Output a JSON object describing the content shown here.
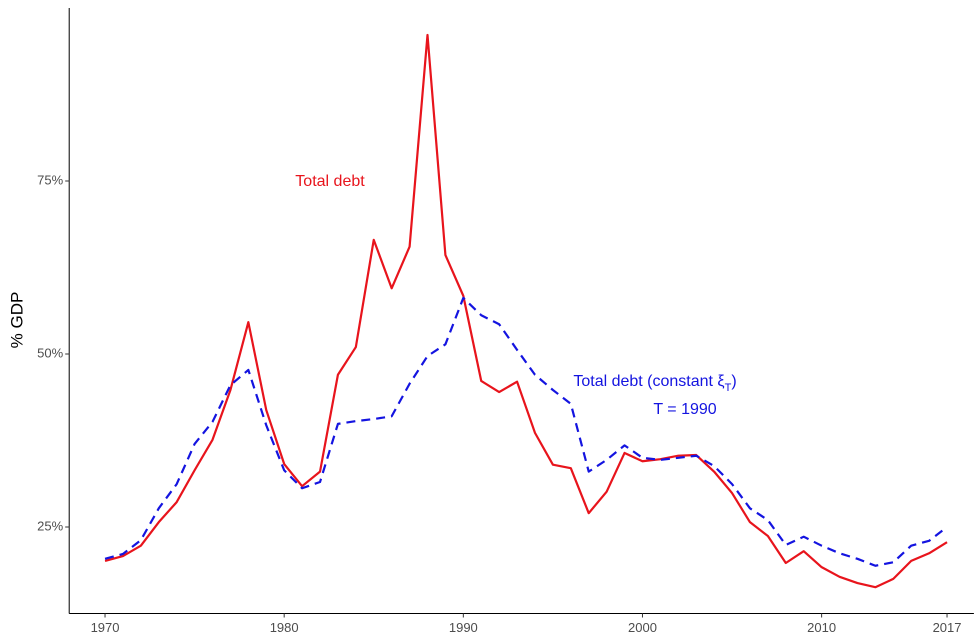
{
  "chart_data": {
    "type": "line",
    "ylabel": "% GDP",
    "x": [
      1970,
      1971,
      1972,
      1973,
      1974,
      1975,
      1976,
      1977,
      1978,
      1979,
      1980,
      1981,
      1982,
      1983,
      1984,
      1985,
      1986,
      1987,
      1988,
      1989,
      1990,
      1991,
      1992,
      1993,
      1994,
      1995,
      1996,
      1997,
      1998,
      1999,
      2000,
      2001,
      2002,
      2003,
      2004,
      2005,
      2006,
      2007,
      2008,
      2009,
      2010,
      2011,
      2012,
      2013,
      2014,
      2015,
      2016,
      2017
    ],
    "series": [
      {
        "name": "Total debt",
        "color": "#e8141c",
        "dash": false,
        "values": [
          20.1,
          20.8,
          22.3,
          25.7,
          28.6,
          33.2,
          37.6,
          44.8,
          54.6,
          41.9,
          34.1,
          30.9,
          33.0,
          47.0,
          51.0,
          66.5,
          59.5,
          65.5,
          96.1,
          64.3,
          58.4,
          46.1,
          44.5,
          46.0,
          38.6,
          34.0,
          33.5,
          27.0,
          30.1,
          35.7,
          34.5,
          34.8,
          35.3,
          35.4,
          33.0,
          29.9,
          25.7,
          23.7,
          19.8,
          21.5,
          19.2,
          17.8,
          16.9,
          16.3,
          17.5,
          20.1,
          21.2,
          22.8
        ]
      },
      {
        "name": "Total debt (constant ξT)",
        "color": "#1414e0",
        "dash": true,
        "values": [
          20.4,
          21.1,
          23.1,
          27.7,
          31.2,
          37.0,
          40.2,
          45.5,
          47.7,
          39.7,
          33.2,
          30.6,
          31.5,
          39.9,
          40.3,
          40.6,
          41.0,
          45.7,
          49.7,
          51.4,
          58.1,
          55.6,
          54.3,
          50.6,
          47.0,
          44.8,
          42.8,
          33.0,
          34.7,
          36.8,
          35.0,
          34.7,
          35.0,
          35.3,
          33.8,
          31.2,
          27.7,
          26.0,
          22.4,
          23.6,
          22.3,
          21.2,
          20.4,
          19.4,
          19.9,
          22.3,
          23.0,
          25.0
        ]
      }
    ],
    "annotations": [
      {
        "parts": [
          "Total debt"
        ],
        "color": "#e8141c"
      },
      {
        "parts": [
          "Total debt (constant ξ",
          "T",
          ")"
        ],
        "color": "#1414e0"
      },
      {
        "parts": [
          "T =  1990"
        ],
        "color": "#1414e0"
      }
    ],
    "xlim": [
      1968,
      2018.5
    ],
    "xticks": [
      1970,
      1980,
      1990,
      2000,
      2010,
      2017
    ],
    "ylim": [
      12.5,
      100
    ],
    "yticks": [
      {
        "value": 25,
        "label": "25%"
      },
      {
        "value": 50,
        "label": "50%"
      },
      {
        "value": 75,
        "label": "75%"
      }
    ],
    "grid": false
  }
}
